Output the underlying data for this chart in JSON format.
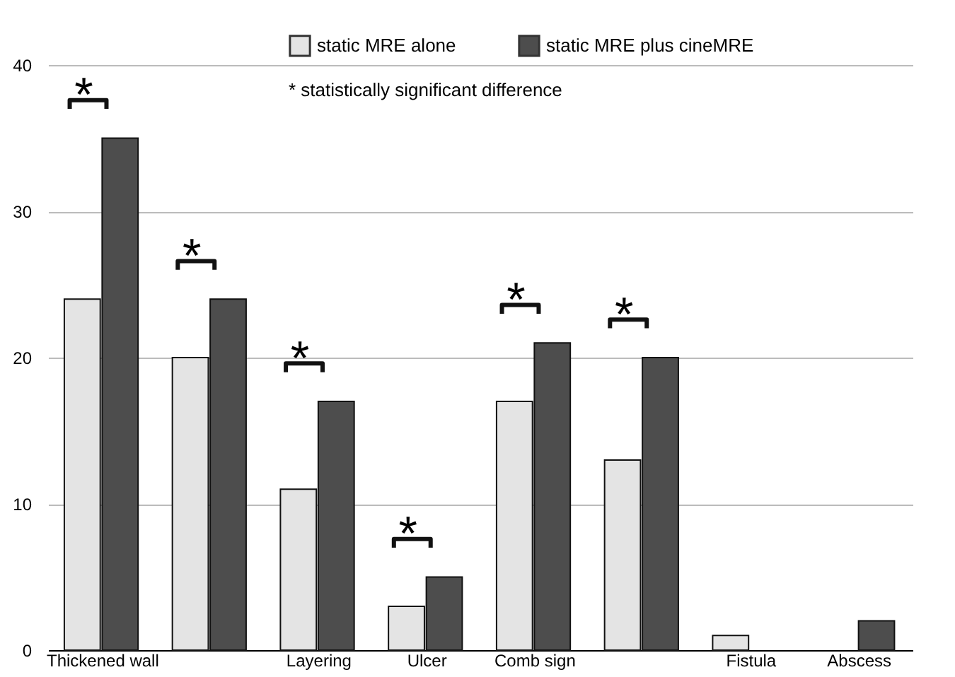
{
  "chart_data": {
    "type": "bar",
    "categories": [
      "Thickened wall",
      null,
      "Layering",
      "Ulcer",
      "Comb sign",
      null,
      "Fistula",
      "Abscess"
    ],
    "series": [
      {
        "name": "static MRE alone",
        "color": "#e4e4e4",
        "values": [
          24,
          20,
          11,
          3,
          17,
          13,
          1,
          0
        ]
      },
      {
        "name": "static MRE plus cineMRE",
        "color": "#4d4d4d",
        "values": [
          35,
          24,
          17,
          5,
          21,
          20,
          0,
          2
        ]
      }
    ],
    "ylim": [
      0,
      40
    ],
    "yticks": [
      0,
      10,
      20,
      30,
      40
    ],
    "grid": "y",
    "legend": "top right",
    "annotations": [
      "* statistically significant difference",
      "*",
      "*",
      "*",
      "*",
      "*",
      "*"
    ]
  }
}
